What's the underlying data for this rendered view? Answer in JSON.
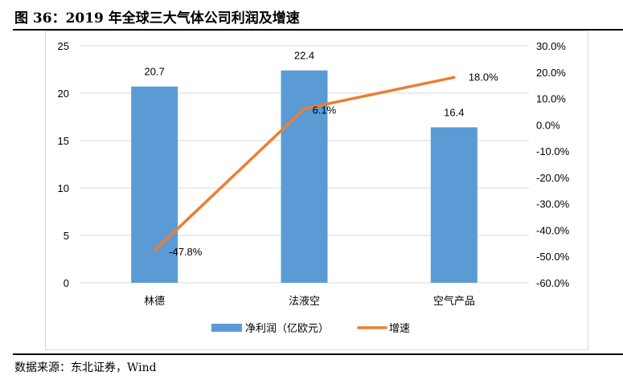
{
  "title": "图 36：2019 年全球三大气体公司利润及增速",
  "source": "数据来源：东北证券，Wind",
  "chart_data": {
    "type": "bar+line",
    "categories": [
      "林德",
      "法液空",
      "空气产品"
    ],
    "series": [
      {
        "name": "净利润（亿欧元）",
        "type": "bar",
        "axis": "left",
        "values": [
          20.7,
          22.4,
          16.4
        ],
        "labels": [
          "20.7",
          "22.4",
          "16.4"
        ],
        "color": "#5b9bd5"
      },
      {
        "name": "增速",
        "type": "line",
        "axis": "right",
        "values": [
          -47.8,
          6.1,
          18.0
        ],
        "labels": [
          "-47.8%",
          "6.1%",
          "18.0%"
        ],
        "color": "#ed7d31"
      }
    ],
    "ylim_left": [
      0,
      25
    ],
    "yticks_left": [
      "0",
      "5",
      "10",
      "15",
      "20",
      "25"
    ],
    "ylim_right": [
      -60,
      30
    ],
    "yticks_right": [
      "-60.0%",
      "-50.0%",
      "-40.0%",
      "-30.0%",
      "-20.0%",
      "-10.0%",
      "0.0%",
      "10.0%",
      "20.0%",
      "30.0%"
    ],
    "grid": true,
    "legend": "bottom"
  }
}
